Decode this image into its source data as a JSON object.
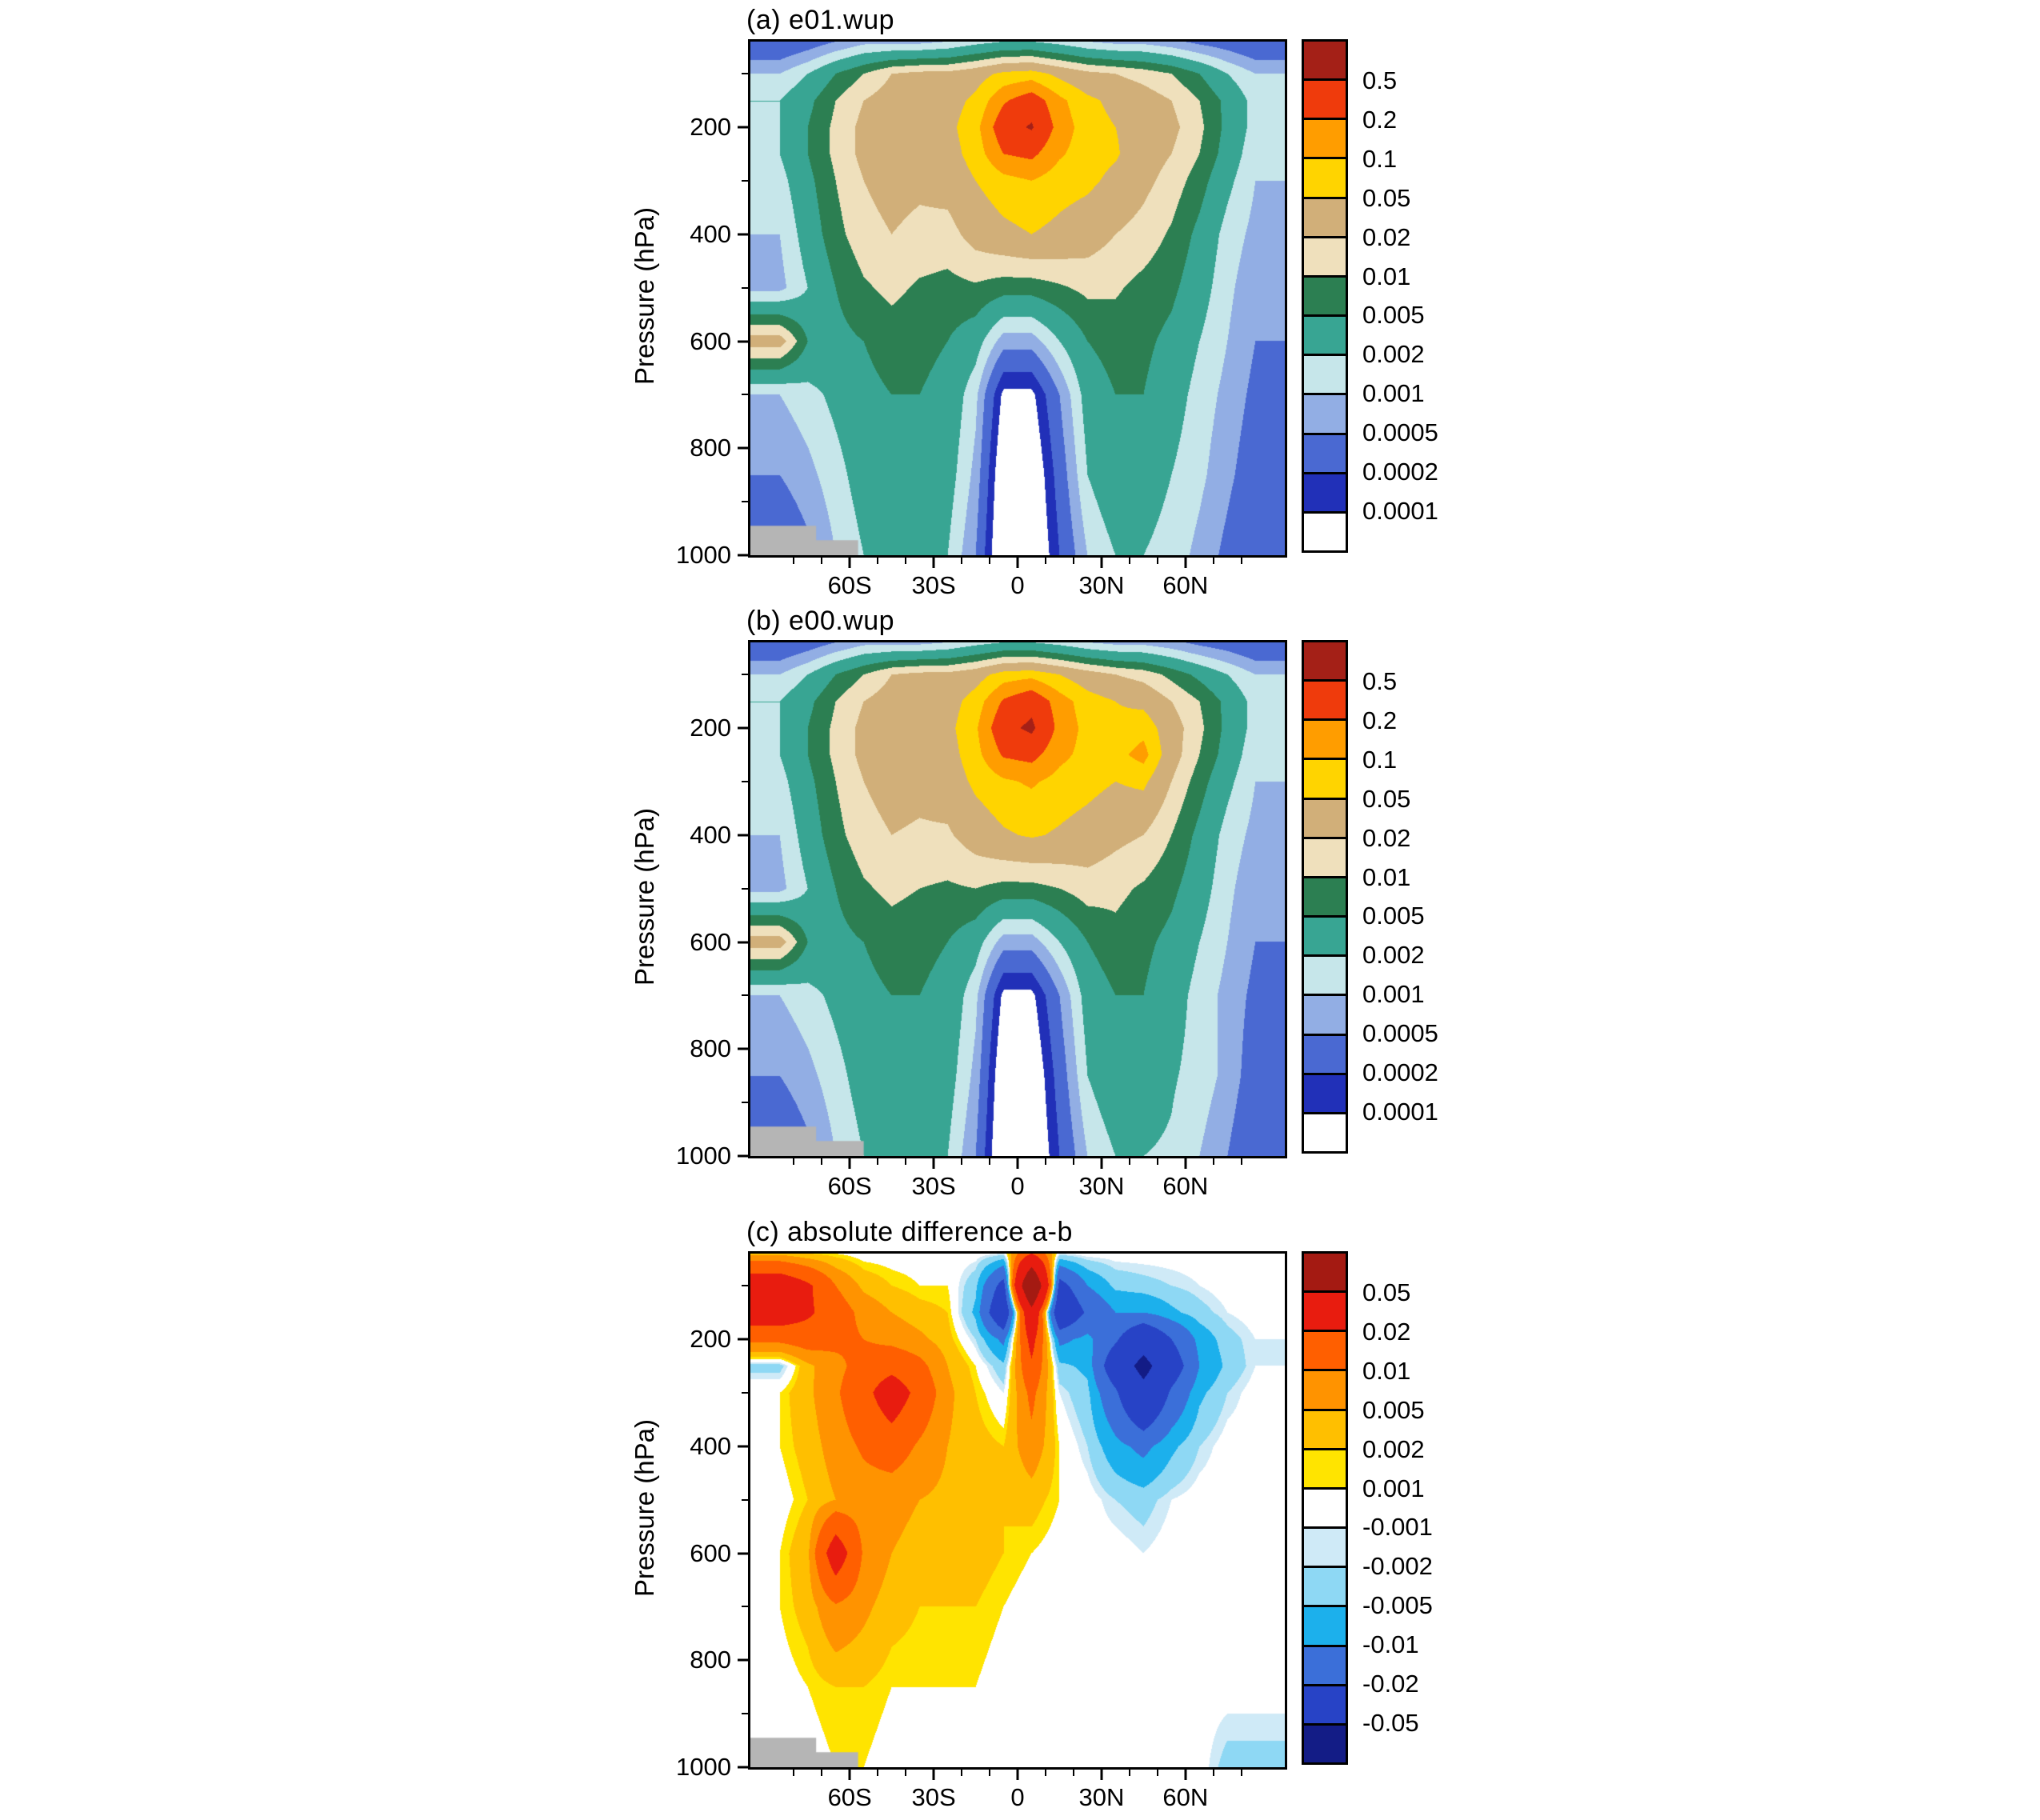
{
  "figure": {
    "ylabel": "Pressure (hPa)"
  },
  "chart_data": [
    {
      "id": "a",
      "type": "heatmap",
      "title": "(a) e01.wup",
      "ylabel": "Pressure (hPa)",
      "scale": "log",
      "legend_position": "right",
      "grid": false,
      "lat_view": [
        -95.5,
        95.5
      ],
      "p_view": [
        40,
        1000
      ],
      "xticks": [
        {
          "v": -60,
          "t": "60S"
        },
        {
          "v": -30,
          "t": "30S"
        },
        {
          "v": 0,
          "t": "0"
        },
        {
          "v": 30,
          "t": "30N"
        },
        {
          "v": 60,
          "t": "60N"
        }
      ],
      "xticks_minor": [
        -80,
        -70,
        -50,
        -40,
        -20,
        -10,
        10,
        20,
        40,
        50,
        70,
        80
      ],
      "yticks": [
        200,
        400,
        600,
        800,
        1000
      ],
      "yticks_minor": [
        100,
        300,
        500,
        700,
        900
      ],
      "levels": [
        0.0001,
        0.0002,
        0.0005,
        0.001,
        0.002,
        0.005,
        0.01,
        0.02,
        0.05,
        0.1,
        0.2,
        0.5
      ],
      "colorbar_labels": [
        "0.5",
        "0.2",
        "0.1",
        "0.05",
        "0.02",
        "0.01",
        "0.005",
        "0.002",
        "0.001",
        "0.0005",
        "0.0002",
        "0.0001"
      ],
      "band_colors": [
        "#ffffff",
        "#2130b8",
        "#4a69d2",
        "#92aee4",
        "#c6e6ea",
        "#38a593",
        "#2c7f52",
        "#efe0bc",
        "#d1af79",
        "#ffd400",
        "#ff9d00",
        "#ef3b0c",
        "#a42017"
      ],
      "lat": [
        -85,
        -75,
        -65,
        -55,
        -45,
        -35,
        -25,
        -15,
        -5,
        5,
        15,
        25,
        35,
        45,
        55,
        65,
        75,
        85
      ],
      "pressure": [
        40,
        100,
        150,
        200,
        250,
        300,
        400,
        500,
        600,
        700,
        850,
        1000
      ],
      "values": [
        [
          0.0002,
          0.0003,
          0.0005,
          0.0008,
          0.0008,
          0.0008,
          0.001,
          0.0015,
          0.002,
          0.002,
          0.0015,
          0.001,
          0.0008,
          0.0008,
          0.0006,
          0.0004,
          0.0003,
          0.0002
        ],
        [
          0.001,
          0.002,
          0.005,
          0.01,
          0.02,
          0.025,
          0.025,
          0.035,
          0.06,
          0.07,
          0.04,
          0.025,
          0.02,
          0.015,
          0.01,
          0.005,
          0.002,
          0.001
        ],
        [
          0.002,
          0.004,
          0.01,
          0.02,
          0.03,
          0.03,
          0.035,
          0.06,
          0.18,
          0.32,
          0.12,
          0.06,
          0.04,
          0.03,
          0.02,
          0.01,
          0.004,
          0.0015
        ],
        [
          0.002,
          0.005,
          0.012,
          0.025,
          0.03,
          0.03,
          0.04,
          0.08,
          0.35,
          0.55,
          0.15,
          0.07,
          0.05,
          0.035,
          0.025,
          0.012,
          0.004,
          0.0015
        ],
        [
          0.002,
          0.005,
          0.012,
          0.025,
          0.03,
          0.028,
          0.035,
          0.07,
          0.2,
          0.24,
          0.11,
          0.07,
          0.055,
          0.03,
          0.02,
          0.01,
          0.0035,
          0.0012
        ],
        [
          0.0015,
          0.004,
          0.01,
          0.02,
          0.028,
          0.024,
          0.028,
          0.05,
          0.08,
          0.1,
          0.07,
          0.06,
          0.04,
          0.025,
          0.015,
          0.007,
          0.0025,
          0.001
        ],
        [
          0.001,
          0.003,
          0.008,
          0.015,
          0.02,
          0.016,
          0.015,
          0.028,
          0.04,
          0.05,
          0.04,
          0.03,
          0.02,
          0.015,
          0.009,
          0.004,
          0.0015,
          0.0008
        ],
        [
          0.0008,
          0.002,
          0.005,
          0.009,
          0.012,
          0.009,
          0.008,
          0.009,
          0.007,
          0.007,
          0.009,
          0.012,
          0.011,
          0.008,
          0.006,
          0.003,
          0.0012,
          0.0006
        ],
        [
          0.03,
          0.005,
          0.004,
          0.005,
          0.007,
          0.006,
          0.005,
          0.003,
          0.0007,
          0.0007,
          0.002,
          0.005,
          0.007,
          0.006,
          0.004,
          0.002,
          0.001,
          0.0005
        ],
        [
          0.001,
          0.0015,
          0.0025,
          0.004,
          0.005,
          0.005,
          0.004,
          0.0012,
          8e-05,
          8e-05,
          0.0005,
          0.003,
          0.005,
          0.005,
          0.003,
          0.0015,
          0.0008,
          0.0004
        ],
        [
          0.0005,
          0.0008,
          0.0015,
          0.003,
          0.004,
          0.004,
          0.003,
          0.0008,
          4e-05,
          4e-05,
          0.0003,
          0.002,
          0.004,
          0.003,
          0.002,
          0.0012,
          0.0006,
          0.0003
        ],
        [
          0.0002,
          0.0004,
          0.001,
          0.002,
          0.003,
          0.003,
          0.002,
          0.0005,
          3e-05,
          3e-05,
          0.0002,
          0.001,
          0.002,
          0.002,
          0.0015,
          0.0008,
          0.0004,
          0.0002
        ]
      ],
      "topo": {
        "color": "#b5b5b5",
        "shapes": [
          {
            "lat0": -95.5,
            "lat1": -72,
            "p0": 945,
            "p1": 1000
          },
          {
            "lat0": -95.5,
            "lat1": -57,
            "p0": 972,
            "p1": 1000
          }
        ]
      }
    },
    {
      "id": "b",
      "type": "heatmap",
      "title": "(b) e00.wup",
      "ylabel": "Pressure (hPa)",
      "scale": "log",
      "legend_position": "right",
      "grid": false,
      "lat_view": [
        -95.5,
        95.5
      ],
      "p_view": [
        40,
        1000
      ],
      "xticks": [
        {
          "v": -60,
          "t": "60S"
        },
        {
          "v": -30,
          "t": "30S"
        },
        {
          "v": 0,
          "t": "0"
        },
        {
          "v": 30,
          "t": "30N"
        },
        {
          "v": 60,
          "t": "60N"
        }
      ],
      "xticks_minor": [
        -80,
        -70,
        -50,
        -40,
        -20,
        -10,
        10,
        20,
        40,
        50,
        70,
        80
      ],
      "yticks": [
        200,
        400,
        600,
        800,
        1000
      ],
      "yticks_minor": [
        100,
        300,
        500,
        700,
        900
      ],
      "levels": [
        0.0001,
        0.0002,
        0.0005,
        0.001,
        0.002,
        0.005,
        0.01,
        0.02,
        0.05,
        0.1,
        0.2,
        0.5
      ],
      "colorbar_labels": [
        "0.5",
        "0.2",
        "0.1",
        "0.05",
        "0.02",
        "0.01",
        "0.005",
        "0.002",
        "0.001",
        "0.0005",
        "0.0002",
        "0.0001"
      ],
      "band_colors": [
        "#ffffff",
        "#2130b8",
        "#4a69d2",
        "#92aee4",
        "#c6e6ea",
        "#38a593",
        "#2c7f52",
        "#efe0bc",
        "#d1af79",
        "#ffd400",
        "#ff9d00",
        "#ef3b0c",
        "#a42017"
      ],
      "lat": [
        -85,
        -75,
        -65,
        -55,
        -45,
        -35,
        -25,
        -15,
        -5,
        5,
        15,
        25,
        35,
        45,
        55,
        65,
        75,
        85
      ],
      "pressure": [
        40,
        100,
        150,
        200,
        250,
        300,
        400,
        500,
        600,
        700,
        850,
        1000
      ],
      "values": [
        [
          0.0002,
          0.0003,
          0.0005,
          0.0008,
          0.0008,
          0.0008,
          0.001,
          0.0015,
          0.002,
          0.002,
          0.0015,
          0.001,
          0.0008,
          0.0008,
          0.0006,
          0.0004,
          0.0003,
          0.0002
        ],
        [
          0.001,
          0.002,
          0.005,
          0.01,
          0.02,
          0.025,
          0.025,
          0.035,
          0.07,
          0.08,
          0.05,
          0.03,
          0.02,
          0.015,
          0.008,
          0.004,
          0.002,
          0.001
        ],
        [
          0.002,
          0.004,
          0.01,
          0.02,
          0.03,
          0.03,
          0.035,
          0.07,
          0.22,
          0.38,
          0.14,
          0.07,
          0.05,
          0.04,
          0.02,
          0.01,
          0.004,
          0.0015
        ],
        [
          0.002,
          0.005,
          0.012,
          0.025,
          0.03,
          0.03,
          0.04,
          0.09,
          0.38,
          0.6,
          0.16,
          0.08,
          0.06,
          0.08,
          0.03,
          0.012,
          0.004,
          0.0015
        ],
        [
          0.002,
          0.005,
          0.012,
          0.025,
          0.03,
          0.028,
          0.035,
          0.08,
          0.22,
          0.26,
          0.12,
          0.08,
          0.08,
          0.13,
          0.03,
          0.01,
          0.0035,
          0.0012
        ],
        [
          0.0015,
          0.004,
          0.01,
          0.02,
          0.028,
          0.025,
          0.03,
          0.06,
          0.09,
          0.11,
          0.08,
          0.065,
          0.05,
          0.06,
          0.02,
          0.007,
          0.0025,
          0.001
        ],
        [
          0.001,
          0.003,
          0.008,
          0.015,
          0.02,
          0.018,
          0.018,
          0.03,
          0.045,
          0.055,
          0.045,
          0.035,
          0.025,
          0.02,
          0.01,
          0.004,
          0.0015,
          0.0008
        ],
        [
          0.0008,
          0.002,
          0.005,
          0.009,
          0.012,
          0.01,
          0.009,
          0.01,
          0.008,
          0.008,
          0.01,
          0.014,
          0.012,
          0.009,
          0.006,
          0.003,
          0.0012,
          0.0006
        ],
        [
          0.03,
          0.005,
          0.004,
          0.005,
          0.007,
          0.006,
          0.005,
          0.003,
          0.0007,
          0.0007,
          0.002,
          0.005,
          0.008,
          0.006,
          0.004,
          0.002,
          0.001,
          0.0005
        ],
        [
          0.001,
          0.0015,
          0.0025,
          0.004,
          0.005,
          0.005,
          0.004,
          0.0012,
          8e-05,
          8e-05,
          0.0005,
          0.003,
          0.005,
          0.005,
          0.003,
          0.0015,
          0.0008,
          0.0004
        ],
        [
          0.0005,
          0.0008,
          0.0015,
          0.003,
          0.004,
          0.004,
          0.003,
          0.0008,
          4e-05,
          4e-05,
          0.0003,
          0.002,
          0.004,
          0.003,
          0.0022,
          0.0015,
          0.0008,
          0.0003
        ],
        [
          0.0002,
          0.0004,
          0.001,
          0.002,
          0.003,
          0.003,
          0.002,
          0.0005,
          3e-05,
          3e-05,
          0.0002,
          0.001,
          0.002,
          0.002,
          0.0018,
          0.001,
          0.0005,
          0.0002
        ]
      ],
      "topo": {
        "color": "#b5b5b5",
        "shapes": [
          {
            "lat0": -95.5,
            "lat1": -72,
            "p0": 945,
            "p1": 1000
          },
          {
            "lat0": -95.5,
            "lat1": -55,
            "p0": 972,
            "p1": 1000
          }
        ]
      }
    },
    {
      "id": "c",
      "type": "heatmap",
      "title": "(c) absolute difference a-b",
      "ylabel": "Pressure (hPa)",
      "scale": "linear",
      "legend_position": "right",
      "grid": false,
      "lat_view": [
        -95.5,
        95.5
      ],
      "p_view": [
        40,
        1000
      ],
      "xticks": [
        {
          "v": -60,
          "t": "60S"
        },
        {
          "v": -30,
          "t": "30S"
        },
        {
          "v": 0,
          "t": "0"
        },
        {
          "v": 30,
          "t": "30N"
        },
        {
          "v": 60,
          "t": "60N"
        }
      ],
      "xticks_minor": [
        -80,
        -70,
        -50,
        -40,
        -20,
        -10,
        10,
        20,
        40,
        50,
        70,
        80
      ],
      "yticks": [
        200,
        400,
        600,
        800,
        1000
      ],
      "yticks_minor": [
        100,
        300,
        500,
        700,
        900
      ],
      "levels": [
        -0.05,
        -0.02,
        -0.01,
        -0.005,
        -0.002,
        -0.001,
        0.001,
        0.002,
        0.005,
        0.01,
        0.02,
        0.05
      ],
      "colorbar_labels": [
        "0.05",
        "0.02",
        "0.01",
        "0.005",
        "0.002",
        "0.001",
        "-0.001",
        "-0.002",
        "-0.005",
        "-0.01",
        "-0.02",
        "-0.05"
      ],
      "band_colors": [
        "#131c86",
        "#2743c6",
        "#3b6fd9",
        "#1cb0ec",
        "#8ed8f4",
        "#cfeaf7",
        "#ffffff",
        "#ffe400",
        "#ffbf00",
        "#ff9300",
        "#ff5f00",
        "#e81c0f",
        "#a41a12"
      ],
      "lat": [
        -85,
        -75,
        -65,
        -55,
        -45,
        -35,
        -25,
        -15,
        -5,
        5,
        15,
        25,
        35,
        45,
        55,
        65,
        75,
        85
      ],
      "pressure": [
        40,
        100,
        150,
        200,
        250,
        300,
        400,
        500,
        600,
        700,
        850,
        1000
      ],
      "values": [
        [
          0.004,
          0.002,
          0.001,
          0,
          0,
          0,
          0,
          0,
          -0.001,
          0.02,
          -0.001,
          0,
          0,
          0,
          0,
          0,
          0,
          0
        ],
        [
          0.03,
          0.022,
          0.01,
          0.004,
          0.002,
          0.001,
          0.001,
          -0.004,
          -0.025,
          0.09,
          -0.025,
          -0.01,
          -0.004,
          -0.003,
          -0.002,
          -0.001,
          0,
          0
        ],
        [
          0.028,
          0.022,
          0.014,
          0.008,
          0.005,
          0.003,
          0.002,
          -0.006,
          -0.035,
          0.04,
          -0.035,
          -0.018,
          -0.01,
          -0.01,
          -0.006,
          -0.003,
          -0.001,
          0
        ],
        [
          0.012,
          0.014,
          0.012,
          0.01,
          0.008,
          0.006,
          0.003,
          -0.002,
          -0.012,
          0.025,
          -0.012,
          -0.008,
          -0.018,
          -0.035,
          -0.02,
          -0.008,
          -0.003,
          -0.001
        ],
        [
          -0.003,
          0.004,
          0.008,
          0.013,
          0.016,
          0.012,
          0.005,
          0.001,
          -0.004,
          0.018,
          -0.004,
          -0.006,
          -0.03,
          -0.06,
          -0.028,
          -0.01,
          -0.004,
          -0.001
        ],
        [
          0.001,
          0.004,
          0.009,
          0.016,
          0.028,
          0.016,
          0.006,
          0.002,
          -0.001,
          0.012,
          -0.001,
          -0.004,
          -0.018,
          -0.04,
          -0.018,
          -0.006,
          -0.002,
          0
        ],
        [
          0.001,
          0.003,
          0.007,
          0.011,
          0.014,
          0.009,
          0.005,
          0.003,
          0.002,
          0.008,
          0.001,
          -0.002,
          -0.008,
          -0.012,
          -0.006,
          -0.002,
          0,
          0
        ],
        [
          0,
          0.002,
          0.005,
          0.007,
          0.006,
          0.005,
          0.004,
          0.003,
          0.002,
          0.003,
          0.001,
          0,
          -0.002,
          -0.003,
          -0.001,
          0,
          0,
          0
        ],
        [
          0.001,
          0.004,
          0.028,
          0.009,
          0.005,
          0.004,
          0.003,
          0.003,
          0.002,
          0.001,
          0,
          0,
          0,
          -0.001,
          0,
          0,
          0,
          0
        ],
        [
          0.001,
          0.003,
          0.009,
          0.006,
          0.003,
          0.002,
          0.002,
          0.002,
          0.001,
          0,
          0,
          0,
          0,
          0,
          0,
          0,
          0,
          0
        ],
        [
          0,
          0.001,
          0.002,
          0.002,
          0.001,
          0.001,
          0.001,
          0.001,
          0,
          0,
          0,
          0,
          0,
          0,
          0,
          0,
          0,
          0
        ],
        [
          0,
          0,
          0.001,
          0.001,
          0,
          0,
          0,
          0,
          0,
          0,
          0,
          0,
          0,
          0,
          0,
          0,
          -0.003,
          -0.003
        ]
      ],
      "topo": {
        "color": "#b5b5b5",
        "shapes": [
          {
            "lat0": -95.5,
            "lat1": -72,
            "p0": 945,
            "p1": 1000
          },
          {
            "lat0": -95.5,
            "lat1": -57,
            "p0": 972,
            "p1": 1000
          }
        ]
      }
    }
  ]
}
